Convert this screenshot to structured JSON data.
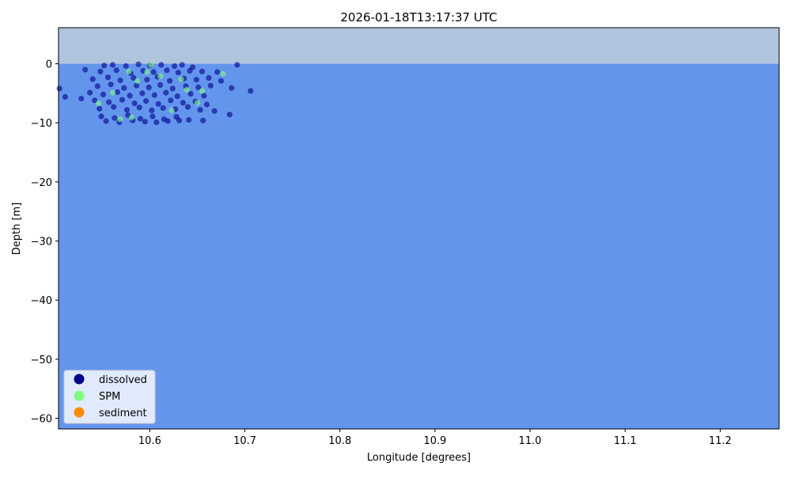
{
  "chart_data": {
    "type": "scatter",
    "title": "2026-01-18T13:17:37 UTC",
    "xlabel": "Longitude [degrees]",
    "ylabel": "Depth [m]",
    "xlim": [
      10.504,
      11.262
    ],
    "ylim": [
      -61.8,
      6.1
    ],
    "xticks": [
      10.6,
      10.7,
      10.8,
      10.9,
      11.0,
      11.1,
      11.2
    ],
    "xtick_labels": [
      "10.6",
      "10.7",
      "10.8",
      "10.9",
      "11.0",
      "11.1",
      "11.2"
    ],
    "yticks": [
      0,
      -10,
      -20,
      -30,
      -40,
      -50,
      -60
    ],
    "ytick_labels": [
      "0",
      "−10",
      "−20",
      "−30",
      "−40",
      "−50",
      "−60"
    ],
    "grid": false,
    "legend_position": "lower-left",
    "regions": {
      "air": {
        "from_depth": 0,
        "color": "#b0c4de"
      },
      "water": {
        "to_depth": 0,
        "color": "#6495ed"
      }
    },
    "series": [
      {
        "name": "dissolved",
        "color": "#00008b",
        "points": [
          [
            10.552,
            -0.3
          ],
          [
            10.561,
            -0.2
          ],
          [
            10.575,
            -0.4
          ],
          [
            10.588,
            -0.1
          ],
          [
            10.6,
            -0.3
          ],
          [
            10.612,
            -0.2
          ],
          [
            10.626,
            -0.4
          ],
          [
            10.634,
            -0.2
          ],
          [
            10.645,
            -0.6
          ],
          [
            10.692,
            -0.2
          ],
          [
            10.532,
            -1.0
          ],
          [
            10.548,
            -1.3
          ],
          [
            10.565,
            -1.1
          ],
          [
            10.58,
            -1.6
          ],
          [
            10.593,
            -1.2
          ],
          [
            10.604,
            -1.4
          ],
          [
            10.618,
            -1.1
          ],
          [
            10.63,
            -1.5
          ],
          [
            10.642,
            -1.2
          ],
          [
            10.655,
            -1.3
          ],
          [
            10.671,
            -1.4
          ],
          [
            10.54,
            -2.6
          ],
          [
            10.556,
            -2.3
          ],
          [
            10.569,
            -2.8
          ],
          [
            10.583,
            -2.4
          ],
          [
            10.597,
            -2.7
          ],
          [
            10.608,
            -2.2
          ],
          [
            10.621,
            -2.9
          ],
          [
            10.636,
            -2.5
          ],
          [
            10.649,
            -2.7
          ],
          [
            10.662,
            -2.4
          ],
          [
            10.675,
            -2.9
          ],
          [
            10.545,
            -3.8
          ],
          [
            10.559,
            -3.5
          ],
          [
            10.573,
            -4.1
          ],
          [
            10.586,
            -3.7
          ],
          [
            10.599,
            -4.0
          ],
          [
            10.611,
            -3.6
          ],
          [
            10.624,
            -4.2
          ],
          [
            10.638,
            -3.8
          ],
          [
            10.651,
            -4.0
          ],
          [
            10.664,
            -3.7
          ],
          [
            10.686,
            -4.1
          ],
          [
            10.537,
            -4.9
          ],
          [
            10.551,
            -5.2
          ],
          [
            10.566,
            -4.8
          ],
          [
            10.579,
            -5.4
          ],
          [
            10.592,
            -5.0
          ],
          [
            10.605,
            -5.3
          ],
          [
            10.617,
            -4.9
          ],
          [
            10.629,
            -5.5
          ],
          [
            10.643,
            -5.1
          ],
          [
            10.657,
            -5.4
          ],
          [
            10.706,
            -4.6
          ],
          [
            10.542,
            -6.2
          ],
          [
            10.557,
            -6.5
          ],
          [
            10.571,
            -6.1
          ],
          [
            10.584,
            -6.7
          ],
          [
            10.596,
            -6.3
          ],
          [
            10.609,
            -6.8
          ],
          [
            10.622,
            -6.2
          ],
          [
            10.635,
            -6.6
          ],
          [
            10.648,
            -6.4
          ],
          [
            10.66,
            -6.9
          ],
          [
            10.547,
            -7.6
          ],
          [
            10.562,
            -7.3
          ],
          [
            10.576,
            -7.8
          ],
          [
            10.589,
            -7.4
          ],
          [
            10.602,
            -7.9
          ],
          [
            10.614,
            -7.5
          ],
          [
            10.627,
            -7.7
          ],
          [
            10.64,
            -7.3
          ],
          [
            10.653,
            -7.8
          ],
          [
            10.668,
            -8.0
          ],
          [
            10.684,
            -8.6
          ],
          [
            10.549,
            -8.9
          ],
          [
            10.563,
            -9.2
          ],
          [
            10.577,
            -8.7
          ],
          [
            10.59,
            -9.3
          ],
          [
            10.603,
            -8.9
          ],
          [
            10.615,
            -9.4
          ],
          [
            10.628,
            -9.0
          ],
          [
            10.641,
            -9.5
          ],
          [
            10.656,
            -9.6
          ],
          [
            10.554,
            -9.7
          ],
          [
            10.568,
            -9.9
          ],
          [
            10.582,
            -9.6
          ],
          [
            10.595,
            -9.8
          ],
          [
            10.607,
            -9.9
          ],
          [
            10.619,
            -9.7
          ],
          [
            10.631,
            -9.6
          ],
          [
            10.505,
            -4.2
          ],
          [
            10.511,
            -5.6
          ],
          [
            10.528,
            -5.9
          ]
        ]
      },
      {
        "name": "SPM",
        "color": "#7fff7f",
        "points": [
          [
            10.578,
            -1.3
          ],
          [
            10.601,
            -0.2
          ],
          [
            10.611,
            -2.1
          ],
          [
            10.639,
            -4.4
          ],
          [
            10.677,
            -1.7
          ],
          [
            10.546,
            -6.7
          ],
          [
            10.569,
            -9.4
          ],
          [
            10.587,
            -2.9
          ],
          [
            10.623,
            -7.9
          ],
          [
            10.65,
            -6.6
          ],
          [
            10.561,
            -4.9
          ],
          [
            10.597,
            -1.4
          ],
          [
            10.633,
            -2.6
          ],
          [
            10.655,
            -4.6
          ],
          [
            10.581,
            -9.1
          ]
        ]
      },
      {
        "name": "sediment",
        "color": "#ff8c00",
        "points": []
      }
    ]
  }
}
